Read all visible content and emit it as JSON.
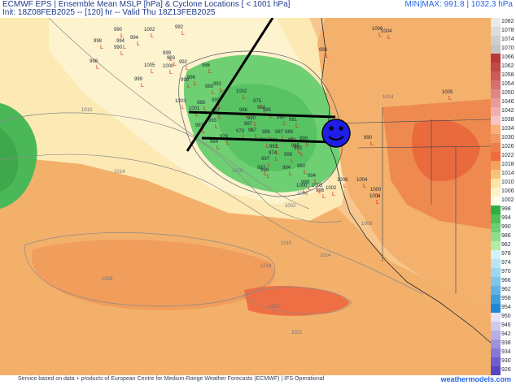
{
  "header": {
    "title": "ECMWF EPS | Ensemble Mean MSLP [hPa] & Cyclone Locations [ < 1001 hPa]",
    "init": "Init: 18Z08FEB2025 -- [120] hr -- Valid Thu 18Z13FEB2025",
    "minmax": "MIN|MAX: 991.8 | 1032.3 hPa"
  },
  "map": {
    "isobars": [
      "1010",
      "1014",
      "1010",
      "1014",
      "1018",
      "1018",
      "1022",
      "1022",
      "1014",
      "1010",
      "1006",
      "1002",
      "1006"
    ],
    "cyclone_pressures": [
      "998",
      "990",
      "994",
      "1002",
      "992",
      "999",
      "998",
      "1005",
      "990",
      "994",
      "999",
      "993",
      "1000",
      "992",
      "999",
      "996",
      "986",
      "992",
      "989",
      "990",
      "986",
      "997",
      "993",
      "987",
      "984",
      "979",
      "973",
      "986",
      "987",
      "1003",
      "1001",
      "984",
      "990",
      "987",
      "1002",
      "975",
      "985",
      "990",
      "991",
      "987",
      "986",
      "974",
      "988",
      "984",
      "983",
      "986",
      "985",
      "999",
      "997",
      "999",
      "997",
      "994",
      "983",
      "990",
      "991",
      "980",
      "1000",
      "998",
      "994",
      "998",
      "1002",
      "1005",
      "1008",
      "1004",
      "990",
      "1000",
      "1004",
      "1006",
      "1004",
      "998",
      "1005"
    ],
    "low_marker": "L",
    "smiley": "smiley-face-marker",
    "annotation_color": "#000000"
  },
  "legend": [
    {
      "value": "1082",
      "color": "#e9e9e9"
    },
    {
      "value": "1078",
      "color": "#dcdcdc"
    },
    {
      "value": "1074",
      "color": "#cfcfcf"
    },
    {
      "value": "1070",
      "color": "#c4c4c4"
    },
    {
      "value": "1066",
      "color": "#b63a3a"
    },
    {
      "value": "1062",
      "color": "#c24848"
    },
    {
      "value": "1058",
      "color": "#cd5a5a"
    },
    {
      "value": "1054",
      "color": "#d77070"
    },
    {
      "value": "1050",
      "color": "#e08686"
    },
    {
      "value": "1046",
      "color": "#e99b9b"
    },
    {
      "value": "1042",
      "color": "#f1b0b0"
    },
    {
      "value": "1038",
      "color": "#f7c4c4"
    },
    {
      "value": "1034",
      "color": "#f8b07a"
    },
    {
      "value": "1030",
      "color": "#f19963"
    },
    {
      "value": "1026",
      "color": "#ec7f4a"
    },
    {
      "value": "1022",
      "color": "#ef6a3c"
    },
    {
      "value": "1018",
      "color": "#f2a25b"
    },
    {
      "value": "1014",
      "color": "#f6c27a"
    },
    {
      "value": "1010",
      "color": "#fbe4a6"
    },
    {
      "value": "1006",
      "color": "#fdf2c8"
    },
    {
      "value": "1002",
      "color": "#fefbe6"
    },
    {
      "value": "998",
      "color": "#2fae46"
    },
    {
      "value": "994",
      "color": "#4fbf5c"
    },
    {
      "value": "990",
      "color": "#6ccf74"
    },
    {
      "value": "986",
      "color": "#8ede8c"
    },
    {
      "value": "982",
      "color": "#b2eaa8"
    },
    {
      "value": "978",
      "color": "#d2f2f8"
    },
    {
      "value": "974",
      "color": "#b8e4f4"
    },
    {
      "value": "970",
      "color": "#9dd6f0"
    },
    {
      "value": "966",
      "color": "#7fc5ea"
    },
    {
      "value": "962",
      "color": "#5fb2e3"
    },
    {
      "value": "958",
      "color": "#3f9fdc"
    },
    {
      "value": "954",
      "color": "#1f87d4"
    },
    {
      "value": "950",
      "color": "#e5e3f5"
    },
    {
      "value": "946",
      "color": "#cfc9ee"
    },
    {
      "value": "942",
      "color": "#b7aee6"
    },
    {
      "value": "938",
      "color": "#9f93de"
    },
    {
      "value": "934",
      "color": "#8778d6"
    },
    {
      "value": "930",
      "color": "#6f5dce"
    },
    {
      "value": "926",
      "color": "#5a46c2"
    }
  ],
  "footer": {
    "credit": "Service based on data + products of European Centre for Medium-Range Weather Forecasts (ECMWF) | IFS Operational",
    "brand": "weathermodels.com"
  }
}
